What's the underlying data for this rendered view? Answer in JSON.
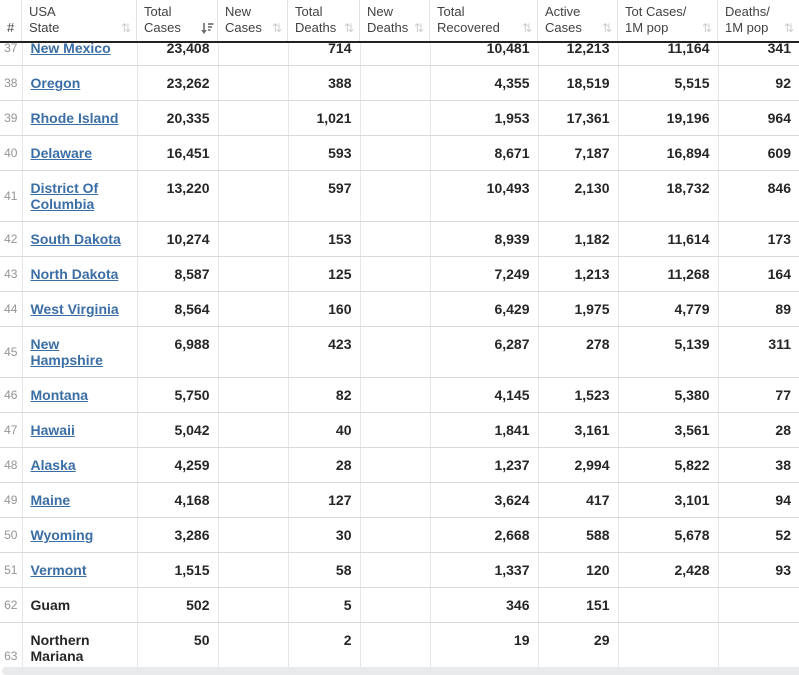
{
  "colors": {
    "link_blue": "#3b6ea5",
    "header_border_dark": "#222222",
    "row_border": "#d9d9d9",
    "sort_icon_inactive": "#cdcdcd",
    "sort_icon_active": "#6a6a6a",
    "scrollbar_strip": "#e9eaeb"
  },
  "table": {
    "columns": [
      {
        "key": "rank",
        "label": "#",
        "sort": "none"
      },
      {
        "key": "state",
        "label": "USA\nState",
        "sort": "unsorted"
      },
      {
        "key": "total_cases",
        "label": "Total\nCases",
        "sort": "desc"
      },
      {
        "key": "new_cases",
        "label": "New\nCases",
        "sort": "unsorted"
      },
      {
        "key": "total_deaths",
        "label": "Total\nDeaths",
        "sort": "unsorted"
      },
      {
        "key": "new_deaths",
        "label": "New\nDeaths",
        "sort": "unsorted"
      },
      {
        "key": "total_recovered",
        "label": "Total\nRecovered",
        "sort": "unsorted"
      },
      {
        "key": "active_cases",
        "label": "Active\nCases",
        "sort": "unsorted"
      },
      {
        "key": "tot_cases_1m",
        "label": "Tot Cases/\n1M pop",
        "sort": "unsorted"
      },
      {
        "key": "deaths_1m",
        "label": "Deaths/\n1M pop",
        "sort": "unsorted"
      }
    ],
    "sort_icons": {
      "unsorted_glyph": "⇅"
    },
    "rows": [
      {
        "rank": "37",
        "state": "New Mexico",
        "link": true,
        "total_cases": "23,408",
        "new_cases": "",
        "total_deaths": "714",
        "new_deaths": "",
        "total_recovered": "10,481",
        "active_cases": "12,213",
        "tot_cases_1m": "11,164",
        "deaths_1m": "341"
      },
      {
        "rank": "38",
        "state": "Oregon",
        "link": true,
        "total_cases": "23,262",
        "new_cases": "",
        "total_deaths": "388",
        "new_deaths": "",
        "total_recovered": "4,355",
        "active_cases": "18,519",
        "tot_cases_1m": "5,515",
        "deaths_1m": "92"
      },
      {
        "rank": "39",
        "state": "Rhode Island",
        "link": true,
        "total_cases": "20,335",
        "new_cases": "",
        "total_deaths": "1,021",
        "new_deaths": "",
        "total_recovered": "1,953",
        "active_cases": "17,361",
        "tot_cases_1m": "19,196",
        "deaths_1m": "964"
      },
      {
        "rank": "40",
        "state": "Delaware",
        "link": true,
        "total_cases": "16,451",
        "new_cases": "",
        "total_deaths": "593",
        "new_deaths": "",
        "total_recovered": "8,671",
        "active_cases": "7,187",
        "tot_cases_1m": "16,894",
        "deaths_1m": "609"
      },
      {
        "rank": "41",
        "state": "District Of Columbia",
        "link": true,
        "total_cases": "13,220",
        "new_cases": "",
        "total_deaths": "597",
        "new_deaths": "",
        "total_recovered": "10,493",
        "active_cases": "2,130",
        "tot_cases_1m": "18,732",
        "deaths_1m": "846"
      },
      {
        "rank": "42",
        "state": "South Dakota",
        "link": true,
        "total_cases": "10,274",
        "new_cases": "",
        "total_deaths": "153",
        "new_deaths": "",
        "total_recovered": "8,939",
        "active_cases": "1,182",
        "tot_cases_1m": "11,614",
        "deaths_1m": "173"
      },
      {
        "rank": "43",
        "state": "North Dakota",
        "link": true,
        "total_cases": "8,587",
        "new_cases": "",
        "total_deaths": "125",
        "new_deaths": "",
        "total_recovered": "7,249",
        "active_cases": "1,213",
        "tot_cases_1m": "11,268",
        "deaths_1m": "164"
      },
      {
        "rank": "44",
        "state": "West Virginia",
        "link": true,
        "total_cases": "8,564",
        "new_cases": "",
        "total_deaths": "160",
        "new_deaths": "",
        "total_recovered": "6,429",
        "active_cases": "1,975",
        "tot_cases_1m": "4,779",
        "deaths_1m": "89"
      },
      {
        "rank": "45",
        "state": "New Hampshire",
        "link": true,
        "total_cases": "6,988",
        "new_cases": "",
        "total_deaths": "423",
        "new_deaths": "",
        "total_recovered": "6,287",
        "active_cases": "278",
        "tot_cases_1m": "5,139",
        "deaths_1m": "311"
      },
      {
        "rank": "46",
        "state": "Montana",
        "link": true,
        "total_cases": "5,750",
        "new_cases": "",
        "total_deaths": "82",
        "new_deaths": "",
        "total_recovered": "4,145",
        "active_cases": "1,523",
        "tot_cases_1m": "5,380",
        "deaths_1m": "77"
      },
      {
        "rank": "47",
        "state": "Hawaii",
        "link": true,
        "total_cases": "5,042",
        "new_cases": "",
        "total_deaths": "40",
        "new_deaths": "",
        "total_recovered": "1,841",
        "active_cases": "3,161",
        "tot_cases_1m": "3,561",
        "deaths_1m": "28"
      },
      {
        "rank": "48",
        "state": "Alaska",
        "link": true,
        "total_cases": "4,259",
        "new_cases": "",
        "total_deaths": "28",
        "new_deaths": "",
        "total_recovered": "1,237",
        "active_cases": "2,994",
        "tot_cases_1m": "5,822",
        "deaths_1m": "38"
      },
      {
        "rank": "49",
        "state": "Maine",
        "link": true,
        "total_cases": "4,168",
        "new_cases": "",
        "total_deaths": "127",
        "new_deaths": "",
        "total_recovered": "3,624",
        "active_cases": "417",
        "tot_cases_1m": "3,101",
        "deaths_1m": "94"
      },
      {
        "rank": "50",
        "state": "Wyoming",
        "link": true,
        "total_cases": "3,286",
        "new_cases": "",
        "total_deaths": "30",
        "new_deaths": "",
        "total_recovered": "2,668",
        "active_cases": "588",
        "tot_cases_1m": "5,678",
        "deaths_1m": "52"
      },
      {
        "rank": "51",
        "state": "Vermont",
        "link": true,
        "total_cases": "1,515",
        "new_cases": "",
        "total_deaths": "58",
        "new_deaths": "",
        "total_recovered": "1,337",
        "active_cases": "120",
        "tot_cases_1m": "2,428",
        "deaths_1m": "93"
      },
      {
        "rank": "62",
        "state": "Guam",
        "link": false,
        "total_cases": "502",
        "new_cases": "",
        "total_deaths": "5",
        "new_deaths": "",
        "total_recovered": "346",
        "active_cases": "151",
        "tot_cases_1m": "",
        "deaths_1m": ""
      },
      {
        "rank": "63",
        "state": "Northern Mariana Islands",
        "link": false,
        "total_cases": "50",
        "new_cases": "",
        "total_deaths": "2",
        "new_deaths": "",
        "total_recovered": "19",
        "active_cases": "29",
        "tot_cases_1m": "",
        "deaths_1m": ""
      }
    ]
  }
}
